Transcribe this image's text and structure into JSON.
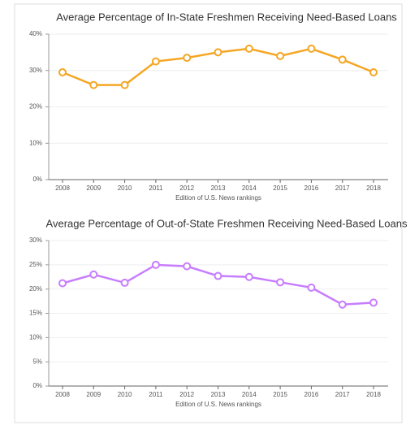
{
  "chart_data": [
    {
      "type": "line",
      "title": "Average Percentage of In-State Freshmen Receiving Need-Based Loans",
      "x_label": "Edition of U.S. News rankings",
      "categories": [
        "2008",
        "2009",
        "2010",
        "2011",
        "2012",
        "2013",
        "2014",
        "2015",
        "2016",
        "2017",
        "2018"
      ],
      "values": [
        29.5,
        26,
        26,
        32.5,
        33.5,
        35,
        36,
        34,
        36,
        33,
        29.5
      ],
      "color": "#f5a623",
      "ylim": [
        0,
        40
      ],
      "yticks": [
        {
          "value": 0,
          "label": "0%"
        },
        {
          "value": 10,
          "label": "10%"
        },
        {
          "value": 20,
          "label": "20%"
        },
        {
          "value": 30,
          "label": "30%"
        },
        {
          "value": 40,
          "label": "40%"
        }
      ],
      "grid": true
    },
    {
      "type": "line",
      "title": "Average Percentage of Out-of-State Freshmen Receiving Need-Based Loans",
      "x_label": "Edition of U.S. News rankings",
      "categories": [
        "2008",
        "2009",
        "2010",
        "2011",
        "2012",
        "2013",
        "2014",
        "2015",
        "2016",
        "2017",
        "2018"
      ],
      "values": [
        21.2,
        23,
        21.3,
        25,
        24.7,
        22.7,
        22.5,
        21.4,
        20.3,
        16.8,
        17.2
      ],
      "color": "#c77dff",
      "ylim": [
        0,
        30
      ],
      "yticks": [
        {
          "value": 0,
          "label": "0%"
        },
        {
          "value": 5,
          "label": "5%"
        },
        {
          "value": 10,
          "label": "10%"
        },
        {
          "value": 15,
          "label": "15%"
        },
        {
          "value": 20,
          "label": "20%"
        },
        {
          "value": 25,
          "label": "25%"
        },
        {
          "value": 30,
          "label": "30%"
        }
      ],
      "grid": true
    }
  ]
}
